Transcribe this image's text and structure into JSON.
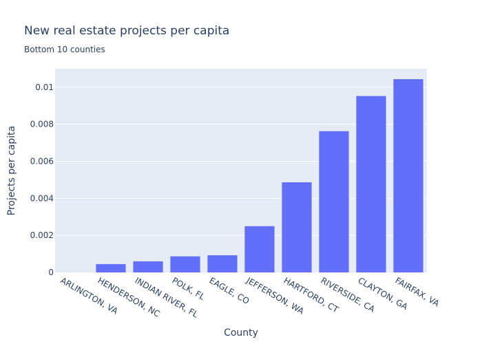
{
  "chart_data": {
    "type": "bar",
    "title": "New real estate projects per capita",
    "subtitle": "Bottom 10 counties",
    "xlabel": "County",
    "ylabel": "Projects per capita",
    "categories": [
      "ARLINGTON, VA",
      "HENDERSON, NC",
      "INDIAN RIVER, FL",
      "POLK, FL",
      "EAGLE, CO",
      "JEFFERSON, WA",
      "HARTFORD, CT",
      "RIVERSIDE, CA",
      "CLAYTON, GA",
      "FAIRFAX, VA"
    ],
    "values": [
      0.0,
      0.00045,
      0.0006,
      0.00087,
      0.00093,
      0.0025,
      0.00487,
      0.00763,
      0.00953,
      0.01044
    ],
    "ylim": [
      0,
      0.011
    ],
    "yticks": [
      0,
      0.002,
      0.004,
      0.006,
      0.008,
      0.01
    ],
    "ytick_labels": [
      "0",
      "0.002",
      "0.004",
      "0.006",
      "0.008",
      "0.01"
    ],
    "grid": true,
    "colors": {
      "bar": "#636efa",
      "plot_bg": "#e5ecf6",
      "grid": "#ffffff",
      "text": "#2a3f5f"
    }
  }
}
